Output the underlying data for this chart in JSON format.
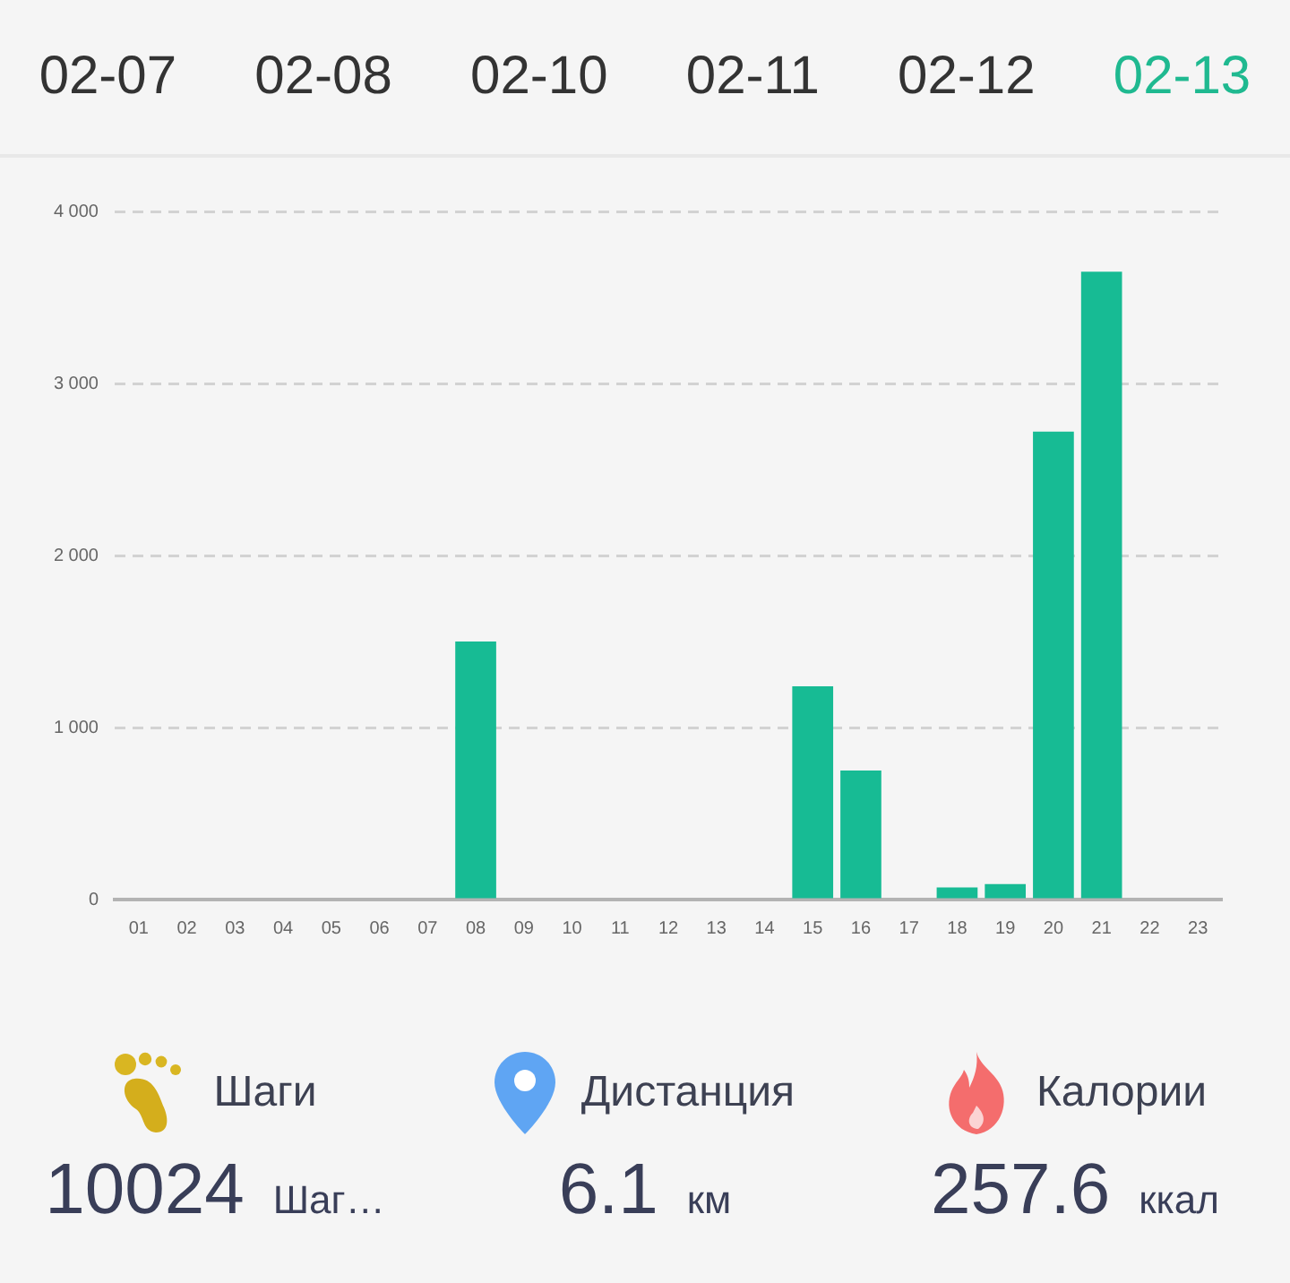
{
  "chart_data": [
    {
      "type": "other",
      "annotations": [
        "02-07",
        "02-08",
        "02-10",
        "02-11",
        "02-12",
        "02-13"
      ],
      "color": "#1fb990"
    },
    {
      "type": "bar",
      "categories": [
        "01",
        "02",
        "03",
        "04",
        "05",
        "06",
        "07",
        "08",
        "09",
        "10",
        "11",
        "12",
        "13",
        "14",
        "15",
        "16",
        "17",
        "18",
        "19",
        "20",
        "21",
        "22",
        "23"
      ],
      "values": [
        0,
        0,
        0,
        0,
        0,
        0,
        0,
        1500,
        0,
        0,
        0,
        0,
        0,
        0,
        1240,
        750,
        0,
        70,
        90,
        2720,
        3650,
        0,
        0
      ],
      "color": "#17bb94",
      "ylim": [
        0,
        4000
      ],
      "yticks": [
        0,
        {
          "value": 1000,
          "label": "1 000"
        },
        {
          "value": 2000,
          "label": "2 000"
        },
        {
          "value": 3000,
          "label": "3 000"
        },
        {
          "value": 4000,
          "label": "4 000"
        }
      ],
      "grid": "y"
    },
    {
      "type": "other",
      "annotations": [
        "Шаги",
        "10024",
        "Шаг…",
        "Дистанция",
        "6.1",
        "км",
        "Калории",
        "257.6",
        "ккал"
      ]
    }
  ]
}
